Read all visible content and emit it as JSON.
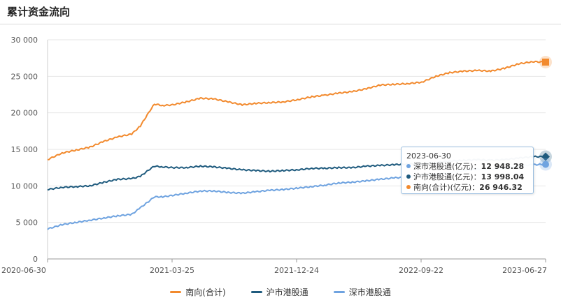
{
  "page": {
    "title": "累计资金流向"
  },
  "tooltip": {
    "date": "2023-06-30",
    "rows": [
      {
        "label": "深市港股通(亿元)：",
        "value": "12 948.28",
        "color": "#6fa3e0"
      },
      {
        "label": "沪市港股通(亿元)：",
        "value": "13 998.04",
        "color": "#1f5b7e"
      },
      {
        "label": "南向(合计)(亿元)：",
        "value": "26 946.32",
        "color": "#f28a2e"
      }
    ]
  },
  "chart_data": {
    "type": "line",
    "title": "累计资金流向",
    "ylim": [
      0,
      30000
    ],
    "yticks": [
      0,
      5000,
      10000,
      15000,
      20000,
      25000,
      30000
    ],
    "ytick_labels": [
      "0",
      "5 000",
      "10 000",
      "15 000",
      "20 000",
      "25 000",
      "30 000"
    ],
    "x_range": [
      "2020-06-30",
      "2023-06-30"
    ],
    "xtick_labels": [
      "2020-06-30",
      "2021-03-25",
      "2021-12-24",
      "2022-09-22",
      "2023-06-27"
    ],
    "grid": true,
    "legend_position": "bottom",
    "series": [
      {
        "name": "南向(合计)",
        "color": "#f28a2e",
        "x": [
          "2020-06-30",
          "2020-08-01",
          "2020-09-01",
          "2020-10-01",
          "2020-11-01",
          "2020-12-01",
          "2021-01-01",
          "2021-01-20",
          "2021-02-10",
          "2021-02-20",
          "2021-03-10",
          "2021-04-01",
          "2021-05-01",
          "2021-06-01",
          "2021-07-01",
          "2021-08-01",
          "2021-09-01",
          "2021-10-01",
          "2021-11-01",
          "2021-12-01",
          "2022-01-01",
          "2022-02-01",
          "2022-03-01",
          "2022-04-01",
          "2022-05-01",
          "2022-06-01",
          "2022-07-01",
          "2022-08-01",
          "2022-09-01",
          "2022-10-01",
          "2022-11-01",
          "2022-12-01",
          "2023-01-01",
          "2023-02-01",
          "2023-03-01",
          "2023-04-01",
          "2023-05-01",
          "2023-06-01",
          "2023-06-30"
        ],
        "values": [
          13600,
          14500,
          14900,
          15300,
          16100,
          16700,
          17100,
          18200,
          20300,
          21200,
          21000,
          21100,
          21500,
          22000,
          21900,
          21500,
          21100,
          21300,
          21400,
          21500,
          21800,
          22200,
          22400,
          22700,
          22900,
          23300,
          23800,
          23900,
          24000,
          24200,
          25000,
          25500,
          25700,
          25800,
          25700,
          26100,
          26700,
          27000,
          26946.32
        ]
      },
      {
        "name": "沪市港股通",
        "color": "#1f5b7e",
        "x": [
          "2020-06-30",
          "2020-08-01",
          "2020-09-01",
          "2020-10-01",
          "2020-11-01",
          "2020-12-01",
          "2021-01-01",
          "2021-01-20",
          "2021-02-10",
          "2021-02-20",
          "2021-03-10",
          "2021-04-01",
          "2021-05-01",
          "2021-06-01",
          "2021-07-01",
          "2021-08-01",
          "2021-09-01",
          "2021-10-01",
          "2021-11-01",
          "2021-12-01",
          "2022-01-01",
          "2022-02-01",
          "2022-03-01",
          "2022-04-01",
          "2022-05-01",
          "2022-06-01",
          "2022-07-01",
          "2022-08-01",
          "2022-09-01",
          "2022-10-01",
          "2022-11-01",
          "2022-12-01",
          "2023-01-01",
          "2023-02-01",
          "2023-03-01",
          "2023-04-01",
          "2023-05-01",
          "2023-06-01",
          "2023-06-30"
        ],
        "values": [
          9500,
          9800,
          9900,
          10000,
          10500,
          10900,
          11000,
          11300,
          12300,
          12700,
          12600,
          12500,
          12500,
          12700,
          12600,
          12400,
          12200,
          12100,
          12000,
          12100,
          12200,
          12400,
          12400,
          12500,
          12500,
          12700,
          12800,
          12900,
          13000,
          13000,
          13200,
          13400,
          13500,
          13600,
          13500,
          13600,
          13800,
          14000,
          13998.04
        ]
      },
      {
        "name": "深市港股通",
        "color": "#6fa3e0",
        "x": [
          "2020-06-30",
          "2020-08-01",
          "2020-09-01",
          "2020-10-01",
          "2020-11-01",
          "2020-12-01",
          "2021-01-01",
          "2021-01-20",
          "2021-02-10",
          "2021-02-20",
          "2021-03-10",
          "2021-04-01",
          "2021-05-01",
          "2021-06-01",
          "2021-07-01",
          "2021-08-01",
          "2021-09-01",
          "2021-10-01",
          "2021-11-01",
          "2021-12-01",
          "2022-01-01",
          "2022-02-01",
          "2022-03-01",
          "2022-04-01",
          "2022-05-01",
          "2022-06-01",
          "2022-07-01",
          "2022-08-01",
          "2022-09-01",
          "2022-10-01",
          "2022-11-01",
          "2022-12-01",
          "2023-01-01",
          "2023-02-01",
          "2023-03-01",
          "2023-04-01",
          "2023-05-01",
          "2023-06-01",
          "2023-06-30"
        ],
        "values": [
          4100,
          4700,
          5000,
          5300,
          5600,
          5900,
          6100,
          7000,
          8000,
          8500,
          8500,
          8700,
          9000,
          9300,
          9300,
          9100,
          9000,
          9200,
          9400,
          9500,
          9700,
          9900,
          10100,
          10400,
          10500,
          10700,
          10900,
          11100,
          11200,
          11400,
          11600,
          11800,
          12100,
          12300,
          12300,
          12400,
          12700,
          12900,
          12948.28
        ]
      }
    ]
  }
}
